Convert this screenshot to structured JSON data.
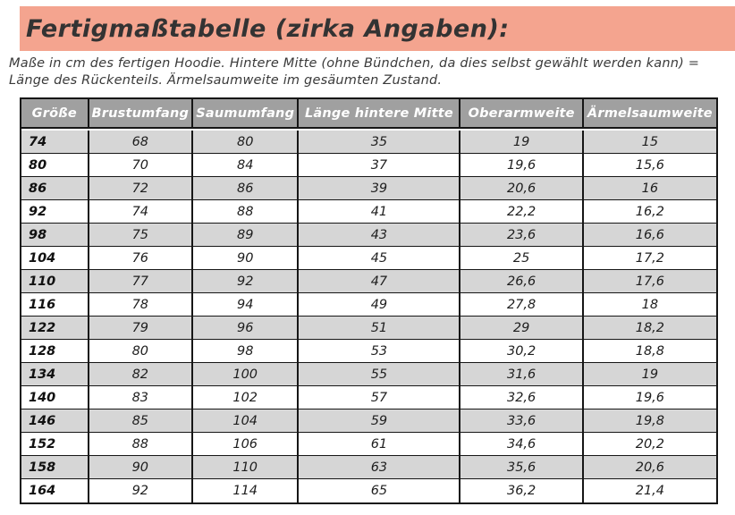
{
  "page": {
    "title": "Fertigmaßtabelle (zirka Angaben):",
    "subtitle_line1": "Maße in cm des fertigen Hoodie. Hintere Mitte (ohne Bündchen, da dies selbst gewählt werden kann) =",
    "subtitle_line2": "Länge des Rückenteils. Ärmelsaumweite im gesäumten Zustand."
  },
  "colors": {
    "banner_bg": "#f4a48f",
    "header_bg": "#a0a0a0",
    "header_text": "#ffffff",
    "row_alt_bg": "#d6d6d6",
    "border": "#161616",
    "text": "#1e1e1e"
  },
  "table": {
    "columns": [
      "Größe",
      "Brustumfang",
      "Saumumfang",
      "Länge hintere Mitte",
      "Oberarmweite",
      "Ärmelsaumweite"
    ],
    "rows": [
      [
        "74",
        "68",
        "80",
        "35",
        "19",
        "15"
      ],
      [
        "80",
        "70",
        "84",
        "37",
        "19,6",
        "15,6"
      ],
      [
        "86",
        "72",
        "86",
        "39",
        "20,6",
        "16"
      ],
      [
        "92",
        "74",
        "88",
        "41",
        "22,2",
        "16,2"
      ],
      [
        "98",
        "75",
        "89",
        "43",
        "23,6",
        "16,6"
      ],
      [
        "104",
        "76",
        "90",
        "45",
        "25",
        "17,2"
      ],
      [
        "110",
        "77",
        "92",
        "47",
        "26,6",
        "17,6"
      ],
      [
        "116",
        "78",
        "94",
        "49",
        "27,8",
        "18"
      ],
      [
        "122",
        "79",
        "96",
        "51",
        "29",
        "18,2"
      ],
      [
        "128",
        "80",
        "98",
        "53",
        "30,2",
        "18,8"
      ],
      [
        "134",
        "82",
        "100",
        "55",
        "31,6",
        "19"
      ],
      [
        "140",
        "83",
        "102",
        "57",
        "32,6",
        "19,6"
      ],
      [
        "146",
        "85",
        "104",
        "59",
        "33,6",
        "19,8"
      ],
      [
        "152",
        "88",
        "106",
        "61",
        "34,6",
        "20,2"
      ],
      [
        "158",
        "90",
        "110",
        "63",
        "35,6",
        "20,6"
      ],
      [
        "164",
        "92",
        "114",
        "65",
        "36,2",
        "21,4"
      ]
    ]
  }
}
